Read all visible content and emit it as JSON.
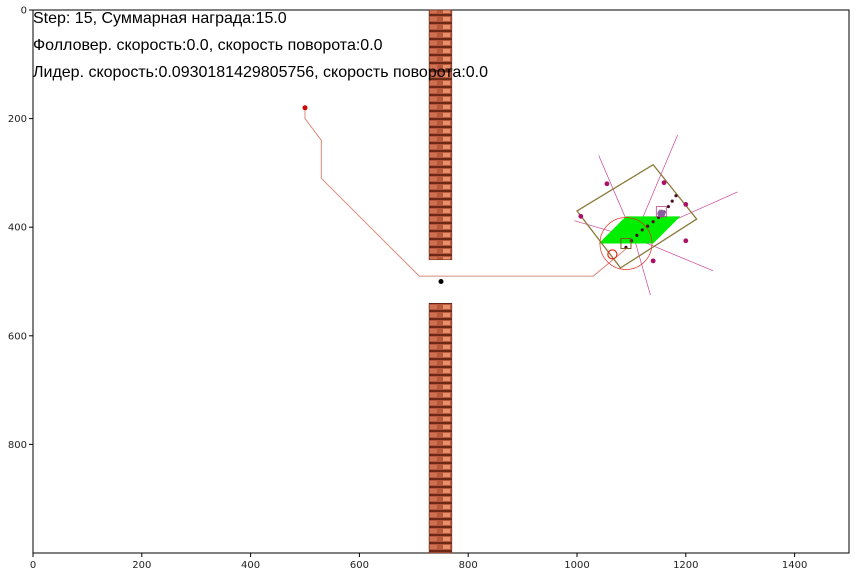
{
  "status": {
    "line1": "Step: 15, Суммарная награда:15.0",
    "line2": "Фолловер. скорость:0.0, скорость поворота:0.0",
    "line3": "Лидер. скорость:0.0930181429805756, скорость поворота:0.0"
  },
  "axes": {
    "xlim": [
      0,
      1500
    ],
    "ylim": [
      1000,
      0
    ],
    "x_ticks": [
      0,
      200,
      400,
      600,
      800,
      1000,
      1200,
      1400
    ],
    "y_ticks": [
      0,
      200,
      400,
      600,
      800
    ]
  },
  "walls": [
    {
      "x0": 728,
      "x1": 770,
      "y0": 0,
      "y1": 460
    },
    {
      "x0": 728,
      "x1": 770,
      "y0": 540,
      "y1": 1000
    }
  ],
  "leader_path": [
    [
      500,
      180
    ],
    [
      500,
      200
    ],
    [
      530,
      240
    ],
    [
      530,
      310
    ],
    [
      710,
      490
    ],
    [
      1030,
      490
    ],
    [
      1090,
      440
    ]
  ],
  "start_point": [
    500,
    180
  ],
  "goal_point": [
    750,
    500
  ],
  "colors": {
    "wall": "#b8583c",
    "path": "#d88a7a",
    "goal": "#000000",
    "start": "#cc0000",
    "zone": "#00ee00",
    "box": "#8a7a3a",
    "ray": "#cc4499",
    "sensor": "#aa1166",
    "follower_circle": "#e03020",
    "leader": "#8a60a0",
    "trail": "#4a1020"
  },
  "robot": {
    "zone": [
      [
        1040,
        430
      ],
      [
        1090,
        380
      ],
      [
        1190,
        380
      ],
      [
        1140,
        430
      ]
    ],
    "box": [
      [
        1000,
        370
      ],
      [
        1140,
        285
      ],
      [
        1220,
        385
      ],
      [
        1080,
        475
      ]
    ],
    "rays": [
      [
        [
          1105,
          420
        ],
        [
          1040,
          268
        ]
      ],
      [
        [
          1105,
          420
        ],
        [
          1185,
          230
        ]
      ],
      [
        [
          1105,
          420
        ],
        [
          1295,
          335
        ]
      ],
      [
        [
          1105,
          420
        ],
        [
          1250,
          480
        ]
      ],
      [
        [
          1105,
          420
        ],
        [
          1135,
          525
        ]
      ],
      [
        [
          1105,
          420
        ],
        [
          995,
          388
        ]
      ]
    ],
    "sensors": [
      [
        1055,
        320
      ],
      [
        1160,
        318
      ],
      [
        1200,
        358
      ],
      [
        1200,
        425
      ],
      [
        1140,
        462
      ],
      [
        1007,
        380
      ]
    ],
    "trail": [
      [
        1090,
        437
      ],
      [
        1100,
        425
      ],
      [
        1110,
        415
      ],
      [
        1120,
        405
      ],
      [
        1130,
        398
      ],
      [
        1140,
        390
      ],
      [
        1150,
        382
      ],
      [
        1160,
        372
      ],
      [
        1168,
        362
      ],
      [
        1175,
        352
      ],
      [
        1182,
        342
      ]
    ],
    "follower": [
      1065,
      450
    ],
    "follower_range": [
      1090,
      430
    ],
    "leader": [
      1155,
      375
    ]
  }
}
